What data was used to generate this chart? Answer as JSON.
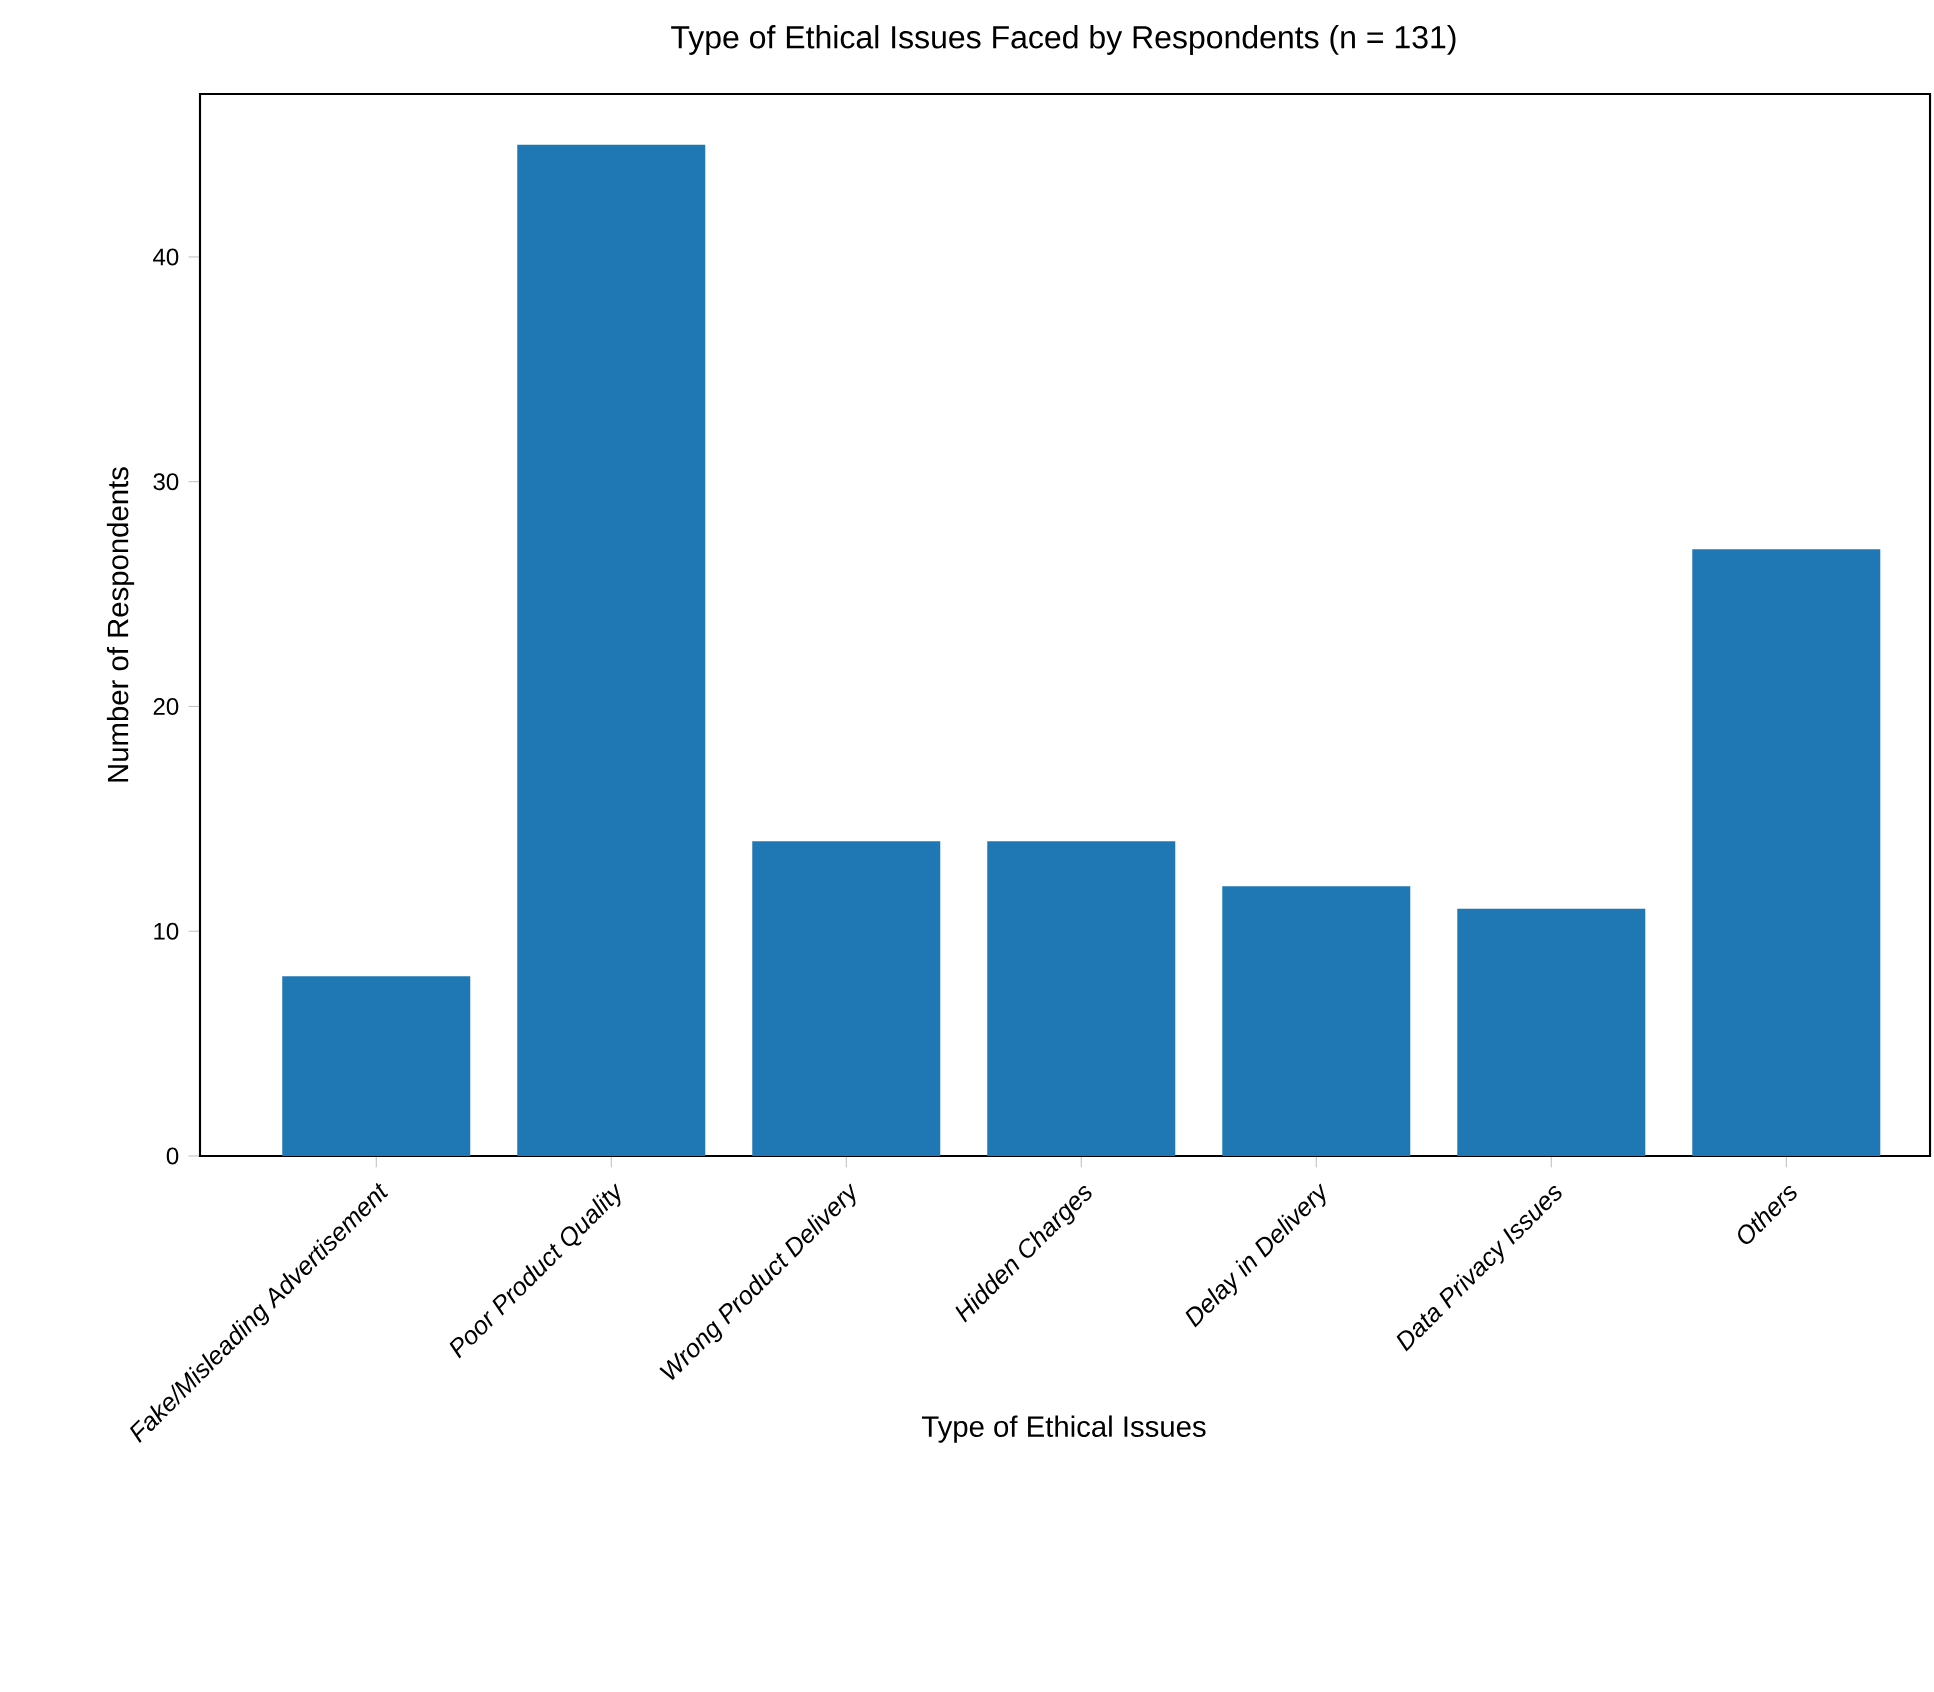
{
  "chart_data": {
    "type": "bar",
    "title": "Type of Ethical Issues Faced by Respondents (n = 131)",
    "xlabel": "Type of Ethical Issues",
    "ylabel": "Number of Respondents",
    "categories": [
      "Fake/Misleading Advertisement",
      "Poor Product Quality",
      "Wrong Product Delivery",
      "Hidden Charges",
      "Delay in Delivery",
      "Data Privacy Issues",
      "Others"
    ],
    "values": [
      8,
      45,
      14,
      14,
      12,
      11,
      27
    ],
    "color": "#1f77b4",
    "ylim": [
      0,
      47.25
    ],
    "yticks": [
      0,
      10,
      20,
      30,
      40
    ]
  }
}
